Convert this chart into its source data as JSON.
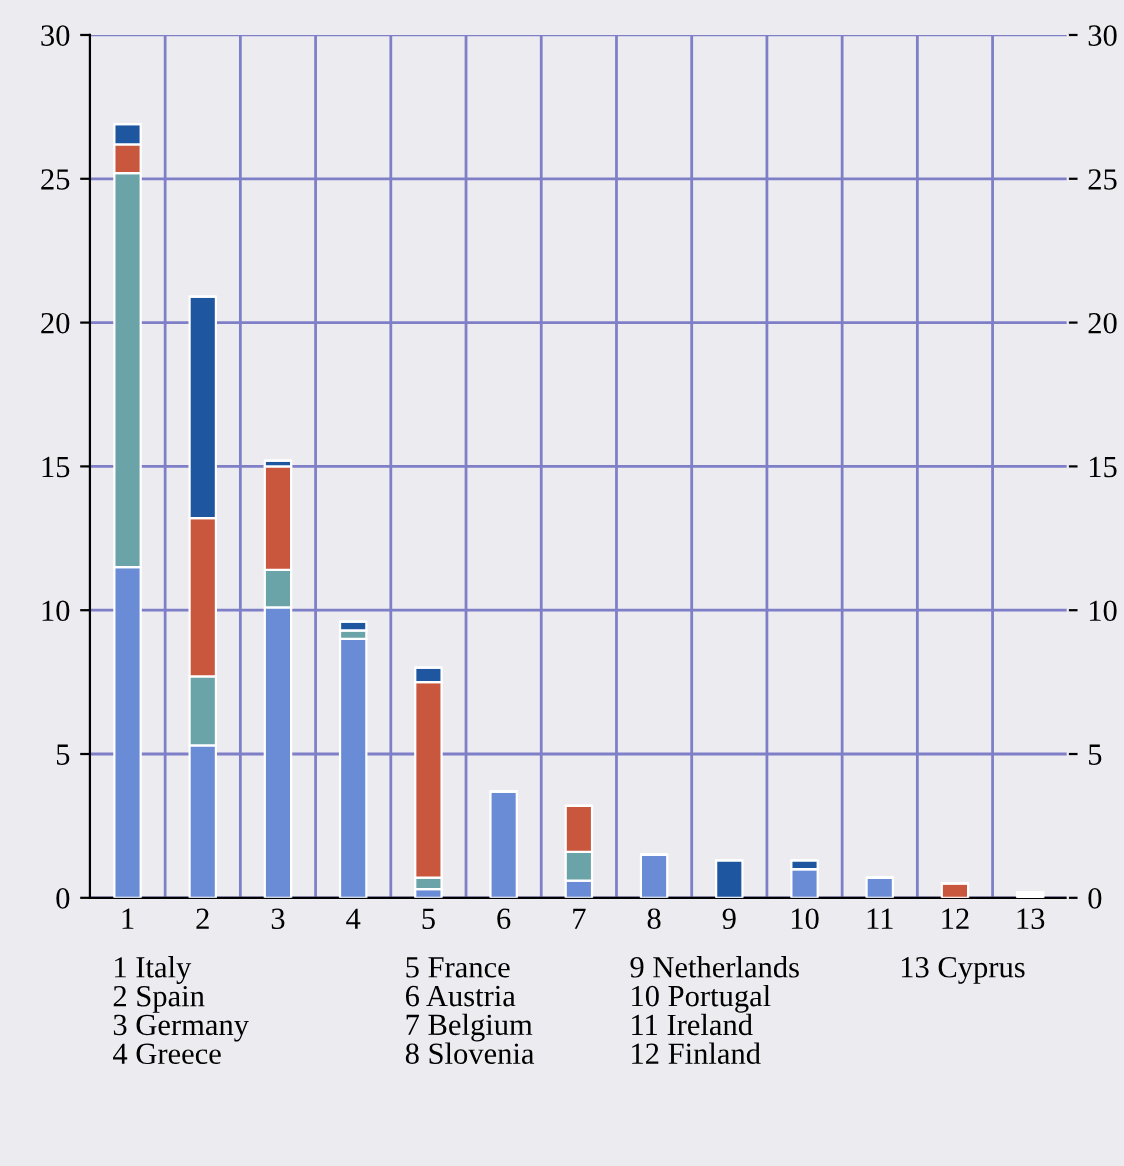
{
  "chart_data": {
    "type": "bar",
    "stacked": true,
    "categories": [
      "1",
      "2",
      "3",
      "4",
      "5",
      "6",
      "7",
      "8",
      "9",
      "10",
      "11",
      "12",
      "13"
    ],
    "series": [
      {
        "color": "#6a8cd6",
        "values": [
          11.5,
          5.3,
          10.1,
          9.0,
          0.3,
          3.7,
          0.6,
          1.5,
          0,
          1.0,
          0.7,
          0,
          0
        ]
      },
      {
        "color": "#6aa3a8",
        "values": [
          13.7,
          2.4,
          1.3,
          0.3,
          0.4,
          0,
          1.0,
          0,
          0,
          0,
          0,
          0,
          0
        ]
      },
      {
        "color": "#c9573e",
        "values": [
          1.0,
          5.5,
          3.6,
          0,
          6.8,
          0,
          1.6,
          0,
          0,
          0,
          0,
          0.5,
          0
        ]
      },
      {
        "color": "#1f56a0",
        "values": [
          0.7,
          7.7,
          0.2,
          0.3,
          0.5,
          0,
          0,
          0,
          1.3,
          0.3,
          0,
          0,
          0
        ]
      },
      {
        "color": "#ffffff",
        "values": [
          0,
          0,
          0,
          0,
          0,
          0,
          0,
          0,
          0,
          0,
          0,
          0,
          0.2
        ]
      }
    ],
    "ylim": [
      0,
      30
    ],
    "yticks": [
      0,
      5,
      10,
      15,
      20,
      25,
      30
    ],
    "y2lim": [
      0,
      30
    ],
    "y2ticks": [
      0,
      5,
      10,
      15,
      20,
      25,
      30
    ],
    "grid": true,
    "annotations": [
      "1 Italy\n2 Spain\n3 Germany\n4 Greece",
      "5 France\n6 Austria\n7 Belgium\n8 Slovenia",
      "9 Netherlands\n10 Portugal\n11 Ireland\n12 Finland",
      "13 Cyprus"
    ]
  }
}
